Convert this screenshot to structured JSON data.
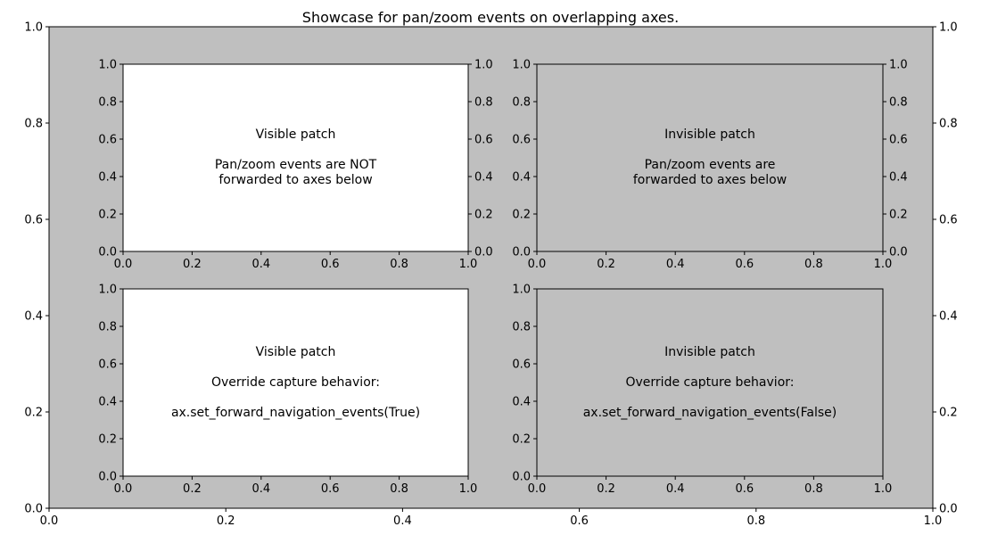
{
  "figure": {
    "title": "Showcase for pan/zoom events on overlapping axes.",
    "background_color": "#ffffff"
  },
  "chart_data": [
    {
      "id": "main",
      "type": "other",
      "xlim": [
        0.0,
        1.0
      ],
      "ylim": [
        0.0,
        1.0
      ],
      "x_ticks": [
        "0.0",
        "0.2",
        "0.4",
        "0.6",
        "0.8",
        "1.0"
      ],
      "y_ticks_left": [
        "0.0",
        "0.2",
        "0.4",
        "0.6",
        "0.8",
        "1.0"
      ],
      "y_ticks_right": [
        "0.0",
        "0.2",
        "0.4",
        "0.6",
        "0.8",
        "1.0"
      ],
      "facecolor": "#bfbfbf",
      "grid": false
    },
    {
      "id": "top-left",
      "type": "other",
      "xlim": [
        0.0,
        1.0
      ],
      "ylim": [
        0.0,
        1.0
      ],
      "x_ticks": [
        "0.0",
        "0.2",
        "0.4",
        "0.6",
        "0.8",
        "1.0"
      ],
      "y_ticks_left": [
        "0.0",
        "0.2",
        "0.4",
        "0.6",
        "0.8",
        "1.0"
      ],
      "y_ticks_right": [
        "0.0",
        "0.2",
        "0.4",
        "0.6",
        "0.8",
        "1.0"
      ],
      "facecolor": "#ffffff",
      "patch_visible": true,
      "annotations": [
        "Visible patch",
        "Pan/zoom events are NOT",
        "forwarded to axes below"
      ]
    },
    {
      "id": "top-right",
      "type": "other",
      "xlim": [
        0.0,
        1.0
      ],
      "ylim": [
        0.0,
        1.0
      ],
      "x_ticks": [
        "0.0",
        "0.2",
        "0.4",
        "0.6",
        "0.8",
        "1.0"
      ],
      "y_ticks_left": [
        "0.0",
        "0.2",
        "0.4",
        "0.6",
        "0.8",
        "1.0"
      ],
      "y_ticks_right": [
        "0.0",
        "0.2",
        "0.4",
        "0.6",
        "0.8",
        "1.0"
      ],
      "facecolor": "none",
      "patch_visible": false,
      "annotations": [
        "Invisible patch",
        "Pan/zoom events are",
        "forwarded to axes below"
      ]
    },
    {
      "id": "bottom-left",
      "type": "other",
      "xlim": [
        0.0,
        1.0
      ],
      "ylim": [
        0.0,
        1.0
      ],
      "x_ticks": [
        "0.0",
        "0.2",
        "0.4",
        "0.6",
        "0.8",
        "1.0"
      ],
      "y_ticks_left": [
        "0.0",
        "0.2",
        "0.4",
        "0.6",
        "0.8",
        "1.0"
      ],
      "y_ticks_right": [],
      "facecolor": "#ffffff",
      "patch_visible": true,
      "annotations": [
        "Visible patch",
        "Override capture behavior:",
        "ax.set_forward_navigation_events(True)"
      ]
    },
    {
      "id": "bottom-right",
      "type": "other",
      "xlim": [
        0.0,
        1.0
      ],
      "ylim": [
        0.0,
        1.0
      ],
      "x_ticks": [
        "0.0",
        "0.2",
        "0.4",
        "0.6",
        "0.8",
        "1.0"
      ],
      "y_ticks_left": [
        "0.0",
        "0.2",
        "0.4",
        "0.6",
        "0.8",
        "1.0"
      ],
      "y_ticks_right": [],
      "facecolor": "none",
      "patch_visible": false,
      "annotations": [
        "Invisible patch",
        "Override capture behavior:",
        "ax.set_forward_navigation_events(False)"
      ]
    }
  ]
}
